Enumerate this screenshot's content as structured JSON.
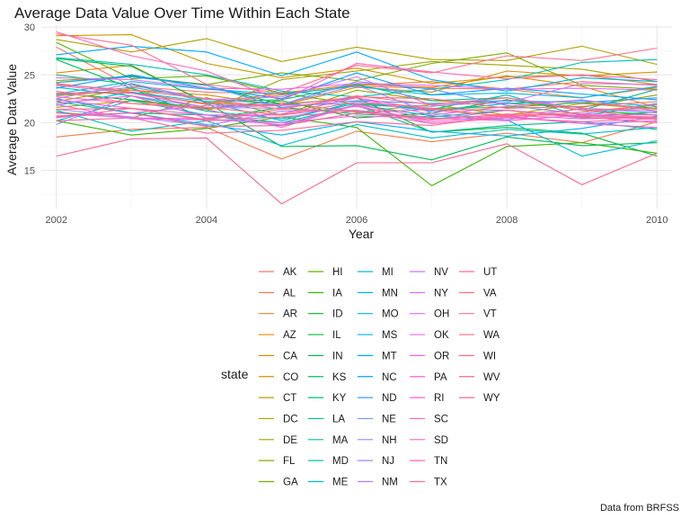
{
  "chart_data": {
    "type": "line",
    "title": "Average Data Value Over Time Within Each State",
    "xlabel": "Year",
    "ylabel": "Average Data Value",
    "caption": "Data from BRFSS",
    "legend_title": "state",
    "legend_position": "bottom",
    "grid": true,
    "xlim": [
      2001.8,
      2010.2
    ],
    "ylim": [
      11,
      30.2
    ],
    "x": [
      2002,
      2003,
      2004,
      2005,
      2006,
      2007,
      2008,
      2009,
      2010
    ],
    "x_ticks": [
      2002,
      2004,
      2006,
      2008,
      2010
    ],
    "y_ticks": [
      15,
      20,
      25,
      30
    ],
    "series": [
      {
        "name": "AK",
        "color": "#F8766D",
        "values": [
          27.9,
          23.8,
          23.2,
          23.0,
          23.8,
          23.6,
          23.5,
          24.3,
          23.9
        ]
      },
      {
        "name": "AL",
        "color": "#F17D4E",
        "values": [
          18.5,
          19.3,
          19.5,
          16.2,
          19.1,
          18.0,
          18.9,
          17.9,
          20.1
        ]
      },
      {
        "name": "AR",
        "color": "#EA8331",
        "values": [
          24.1,
          23.2,
          21.9,
          22.9,
          23.9,
          24.3,
          23.5,
          22.6,
          23.7
        ]
      },
      {
        "name": "AZ",
        "color": "#E28A00",
        "values": [
          25.2,
          26.0,
          22.0,
          23.1,
          24.0,
          23.7,
          24.9,
          23.8,
          21.6
        ]
      },
      {
        "name": "CA",
        "color": "#D89000",
        "values": [
          22.8,
          23.4,
          22.9,
          21.8,
          23.7,
          23.2,
          25.4,
          24.9,
          25.3
        ]
      },
      {
        "name": "CO",
        "color": "#CC9600",
        "values": [
          29.1,
          29.2,
          26.2,
          24.7,
          25.7,
          24.1,
          24.8,
          25.0,
          24.0
        ]
      },
      {
        "name": "CT",
        "color": "#BF9C00",
        "values": [
          21.6,
          22.3,
          21.4,
          22.1,
          21.1,
          21.9,
          20.8,
          22.0,
          21.4
        ]
      },
      {
        "name": "DC",
        "color": "#B09F00",
        "values": [
          28.7,
          27.4,
          28.8,
          26.4,
          27.9,
          26.6,
          26.5,
          28.0,
          26.1
        ]
      },
      {
        "name": "DE",
        "color": "#A0A400",
        "values": [
          22.2,
          23.6,
          21.2,
          24.5,
          25.4,
          26.4,
          26.0,
          25.6,
          24.3
        ]
      },
      {
        "name": "FL",
        "color": "#8EA800",
        "values": [
          21.1,
          20.5,
          22.6,
          20.8,
          23.4,
          22.3,
          22.0,
          21.6,
          22.9
        ]
      },
      {
        "name": "GA",
        "color": "#79AD00",
        "values": [
          24.4,
          24.8,
          24.0,
          25.2,
          24.4,
          26.2,
          27.3,
          23.9,
          23.5
        ]
      },
      {
        "name": "HI",
        "color": "#5FB200",
        "values": [
          28.4,
          24.6,
          24.9,
          23.1,
          21.9,
          21.5,
          21.6,
          22.1,
          21.5
        ]
      },
      {
        "name": "IA",
        "color": "#39B600",
        "values": [
          20.2,
          18.7,
          19.4,
          20.6,
          19.5,
          13.4,
          17.5,
          17.9,
          16.8
        ]
      },
      {
        "name": "ID",
        "color": "#00B81F",
        "values": [
          23.1,
          22.4,
          21.5,
          22.3,
          20.5,
          21.0,
          22.4,
          21.3,
          20.8
        ]
      },
      {
        "name": "IL",
        "color": "#00BA38",
        "values": [
          24.2,
          24.9,
          23.9,
          21.9,
          22.6,
          19.0,
          19.5,
          18.9,
          16.5
        ]
      },
      {
        "name": "IN",
        "color": "#00BC52",
        "values": [
          26.7,
          25.9,
          22.1,
          17.5,
          17.6,
          16.1,
          18.5,
          17.6,
          17.9
        ]
      },
      {
        "name": "KS",
        "color": "#00BE69",
        "values": [
          26.6,
          23.6,
          20.4,
          21.6,
          20.9,
          20.6,
          21.3,
          20.6,
          21.1
        ]
      },
      {
        "name": "KY",
        "color": "#00BF7D",
        "values": [
          25.0,
          24.0,
          22.2,
          22.4,
          24.0,
          22.3,
          22.6,
          21.3,
          23.5
        ]
      },
      {
        "name": "LA",
        "color": "#00C091",
        "values": [
          22.2,
          21.0,
          20.8,
          20.0,
          21.8,
          19.0,
          19.7,
          20.1,
          19.3
        ]
      },
      {
        "name": "MA",
        "color": "#00C1A3",
        "values": [
          23.7,
          22.8,
          21.2,
          20.4,
          22.0,
          21.4,
          22.9,
          20.7,
          21.9
        ]
      },
      {
        "name": "MD",
        "color": "#00C0B3",
        "values": [
          26.8,
          26.1,
          25.0,
          23.3,
          22.7,
          23.5,
          24.5,
          26.3,
          26.6
        ]
      },
      {
        "name": "ME",
        "color": "#00BFC3",
        "values": [
          21.3,
          19.1,
          20.2,
          17.6,
          19.8,
          18.4,
          19.3,
          18.8,
          19.5
        ]
      },
      {
        "name": "MI",
        "color": "#00BDD1",
        "values": [
          20.2,
          22.3,
          20.8,
          19.7,
          21.9,
          20.7,
          20.3,
          16.5,
          18.1
        ]
      },
      {
        "name": "MN",
        "color": "#00BADE",
        "values": [
          23.0,
          24.3,
          23.5,
          23.0,
          23.8,
          22.9,
          23.1,
          22.6,
          23.8
        ]
      },
      {
        "name": "MO",
        "color": "#00B6EA",
        "values": [
          21.8,
          23.2,
          22.2,
          20.2,
          22.2,
          21.2,
          22.0,
          22.3,
          21.7
        ]
      },
      {
        "name": "MS",
        "color": "#00B0F6",
        "values": [
          22.5,
          21.0,
          19.8,
          18.7,
          20.1,
          19.1,
          18.6,
          19.4,
          20.7
        ]
      },
      {
        "name": "MT",
        "color": "#00A9FF",
        "values": [
          27.1,
          28.0,
          27.4,
          24.9,
          27.4,
          24.5,
          23.3,
          24.7,
          24.3
        ]
      },
      {
        "name": "NC",
        "color": "#00A2FF",
        "values": [
          23.6,
          25.0,
          23.6,
          22.5,
          25.2,
          22.9,
          23.6,
          23.0,
          22.4
        ]
      },
      {
        "name": "ND",
        "color": "#3D9BFF",
        "values": [
          24.2,
          24.8,
          23.9,
          21.6,
          22.3,
          22.0,
          22.3,
          22.1,
          22.6
        ]
      },
      {
        "name": "NE",
        "color": "#6E94FF",
        "values": [
          22.9,
          23.7,
          22.5,
          21.9,
          24.3,
          23.5,
          21.8,
          20.9,
          22.0
        ]
      },
      {
        "name": "NH",
        "color": "#8F8CFF",
        "values": [
          19.8,
          22.8,
          21.6,
          21.8,
          22.0,
          21.7,
          22.6,
          21.5,
          21.2
        ]
      },
      {
        "name": "NJ",
        "color": "#A686FF",
        "values": [
          21.4,
          20.6,
          19.7,
          21.2,
          21.3,
          20.3,
          21.3,
          20.5,
          20.6
        ]
      },
      {
        "name": "NM",
        "color": "#BA7EFF",
        "values": [
          20.6,
          21.0,
          21.8,
          21.9,
          23.9,
          21.0,
          20.3,
          21.5,
          21.0
        ]
      },
      {
        "name": "NV",
        "color": "#CA77FF",
        "values": [
          22.5,
          24.1,
          22.4,
          22.7,
          24.8,
          21.8,
          22.1,
          24.1,
          24.0
        ]
      },
      {
        "name": "NY",
        "color": "#D873FB",
        "values": [
          21.0,
          20.5,
          20.4,
          19.8,
          21.8,
          19.9,
          20.6,
          19.9,
          20.2
        ]
      },
      {
        "name": "OH",
        "color": "#E36EF6",
        "values": [
          23.9,
          23.1,
          21.6,
          21.5,
          22.6,
          20.8,
          21.7,
          22.4,
          21.2
        ]
      },
      {
        "name": "OK",
        "color": "#EC69EF",
        "values": [
          24.7,
          24.5,
          23.6,
          23.5,
          24.1,
          23.9,
          23.5,
          23.6,
          23.4
        ]
      },
      {
        "name": "OR",
        "color": "#F365E7",
        "values": [
          21.9,
          20.4,
          20.3,
          20.0,
          20.7,
          20.5,
          20.2,
          20.8,
          20.6
        ]
      },
      {
        "name": "PA",
        "color": "#F962DD",
        "values": [
          22.4,
          21.5,
          20.8,
          20.8,
          21.7,
          20.1,
          20.7,
          19.9,
          19.5
        ]
      },
      {
        "name": "RI",
        "color": "#FD61D3",
        "values": [
          22.0,
          22.8,
          20.5,
          20.9,
          22.6,
          21.3,
          20.7,
          20.9,
          20.8
        ]
      },
      {
        "name": "SC",
        "color": "#FF62C6",
        "values": [
          22.7,
          22.0,
          21.4,
          19.5,
          21.9,
          20.4,
          20.8,
          20.4,
          20.5
        ]
      },
      {
        "name": "SD",
        "color": "#FF65BA",
        "values": [
          29.5,
          27.0,
          25.4,
          22.3,
          26.2,
          25.3,
          24.6,
          25.0,
          24.5
        ]
      },
      {
        "name": "TN",
        "color": "#FF69AC",
        "values": [
          20.5,
          21.5,
          20.2,
          20.6,
          21.2,
          19.9,
          20.5,
          20.1,
          20.4
        ]
      },
      {
        "name": "TX",
        "color": "#FF6C9E",
        "values": [
          20.2,
          20.5,
          18.9,
          19.2,
          20.1,
          19.7,
          20.8,
          21.4,
          20.3
        ]
      },
      {
        "name": "UT",
        "color": "#FF6F90",
        "values": [
          29.3,
          28.1,
          24.0,
          23.1,
          26.0,
          25.2,
          27.0,
          26.5,
          27.8
        ]
      },
      {
        "name": "VA",
        "color": "#FF7282",
        "values": [
          24.0,
          23.4,
          22.5,
          21.4,
          22.8,
          21.9,
          22.6,
          21.3,
          21.5
        ]
      },
      {
        "name": "VT",
        "color": "#FF7474",
        "values": [
          23.3,
          22.0,
          21.6,
          20.8,
          22.2,
          21.5,
          20.6,
          21.1,
          21.9
        ]
      },
      {
        "name": "WA",
        "color": "#FF6F7A",
        "values": [
          21.4,
          21.5,
          20.3,
          21.4,
          21.2,
          20.3,
          20.9,
          20.7,
          20.5
        ]
      },
      {
        "name": "WI",
        "color": "#FB6A84",
        "values": [
          23.1,
          23.1,
          22.0,
          21.8,
          22.7,
          22.5,
          21.5,
          21.7,
          22.2
        ]
      },
      {
        "name": "WV",
        "color": "#F7668E",
        "values": [
          16.5,
          18.3,
          18.4,
          11.5,
          15.8,
          15.8,
          17.8,
          13.5,
          16.8
        ]
      },
      {
        "name": "WY",
        "color": "#F36398",
        "values": [
          20.7,
          21.0,
          19.6,
          19.7,
          21.0,
          21.4,
          21.3,
          20.6,
          20.0
        ]
      }
    ]
  }
}
